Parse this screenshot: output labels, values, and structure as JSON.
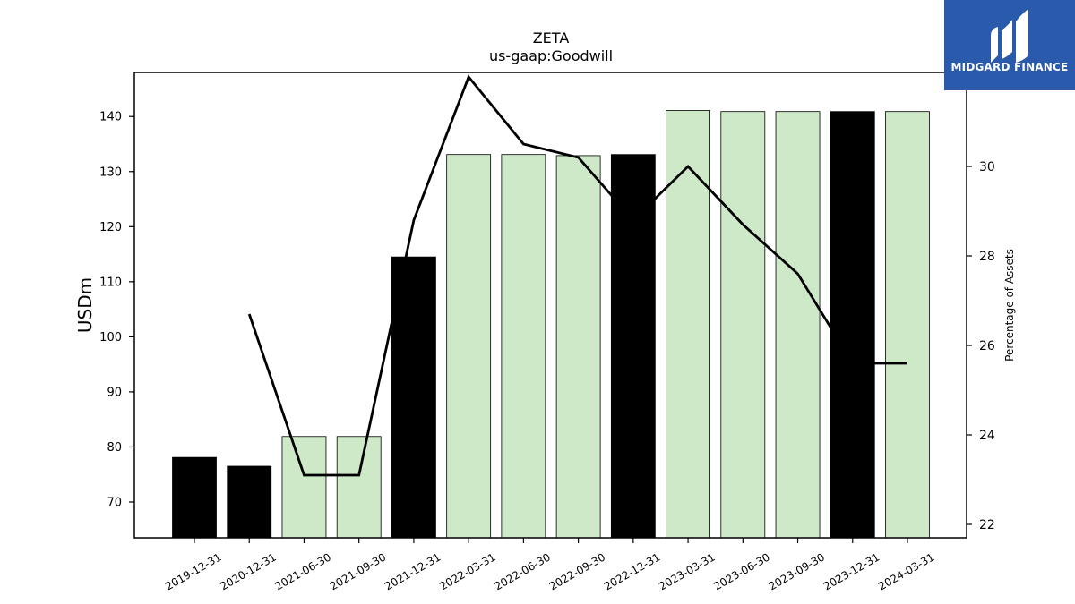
{
  "chart_data": {
    "type": "bar",
    "title": "ZETA",
    "subtitle": "us-gaap:Goodwill",
    "ylabel": "USDm",
    "y2label": "Percentage of Assets",
    "ylim": [
      63.5,
      148
    ],
    "y2lim": [
      21.7,
      32.1
    ],
    "yticks": [
      70,
      80,
      90,
      100,
      110,
      120,
      130,
      140
    ],
    "y2ticks": [
      22,
      24,
      26,
      28,
      30
    ],
    "categories": [
      "2019-12-31",
      "2020-12-31",
      "2021-06-30",
      "2021-09-30",
      "2021-12-31",
      "2022-03-31",
      "2022-06-30",
      "2022-09-30",
      "2022-12-31",
      "2023-03-31",
      "2023-06-30",
      "2023-09-30",
      "2023-12-31",
      "2024-03-31"
    ],
    "series": [
      {
        "values": [
          78.1,
          76.5,
          81.9,
          81.9,
          114.5,
          133.1,
          133.1,
          132.9,
          133.1,
          141.1,
          140.9,
          140.9,
          140.9,
          140.9
        ],
        "annual": [
          true,
          true,
          false,
          false,
          true,
          false,
          false,
          false,
          true,
          false,
          false,
          false,
          true,
          false
        ]
      },
      {
        "values": [
          null,
          26.7,
          23.1,
          23.1,
          28.8,
          32.0,
          30.5,
          30.2,
          28.8,
          30.0,
          28.7,
          27.6,
          25.6,
          25.6
        ]
      }
    ],
    "colors": {
      "annual_bar": "#000000",
      "quarter_bar": "#cde9c8",
      "bar_edge": "#000000",
      "line": "#000000"
    }
  },
  "logo": {
    "text": "MIDGARD FINANCE",
    "bg": "#2a5aab"
  }
}
